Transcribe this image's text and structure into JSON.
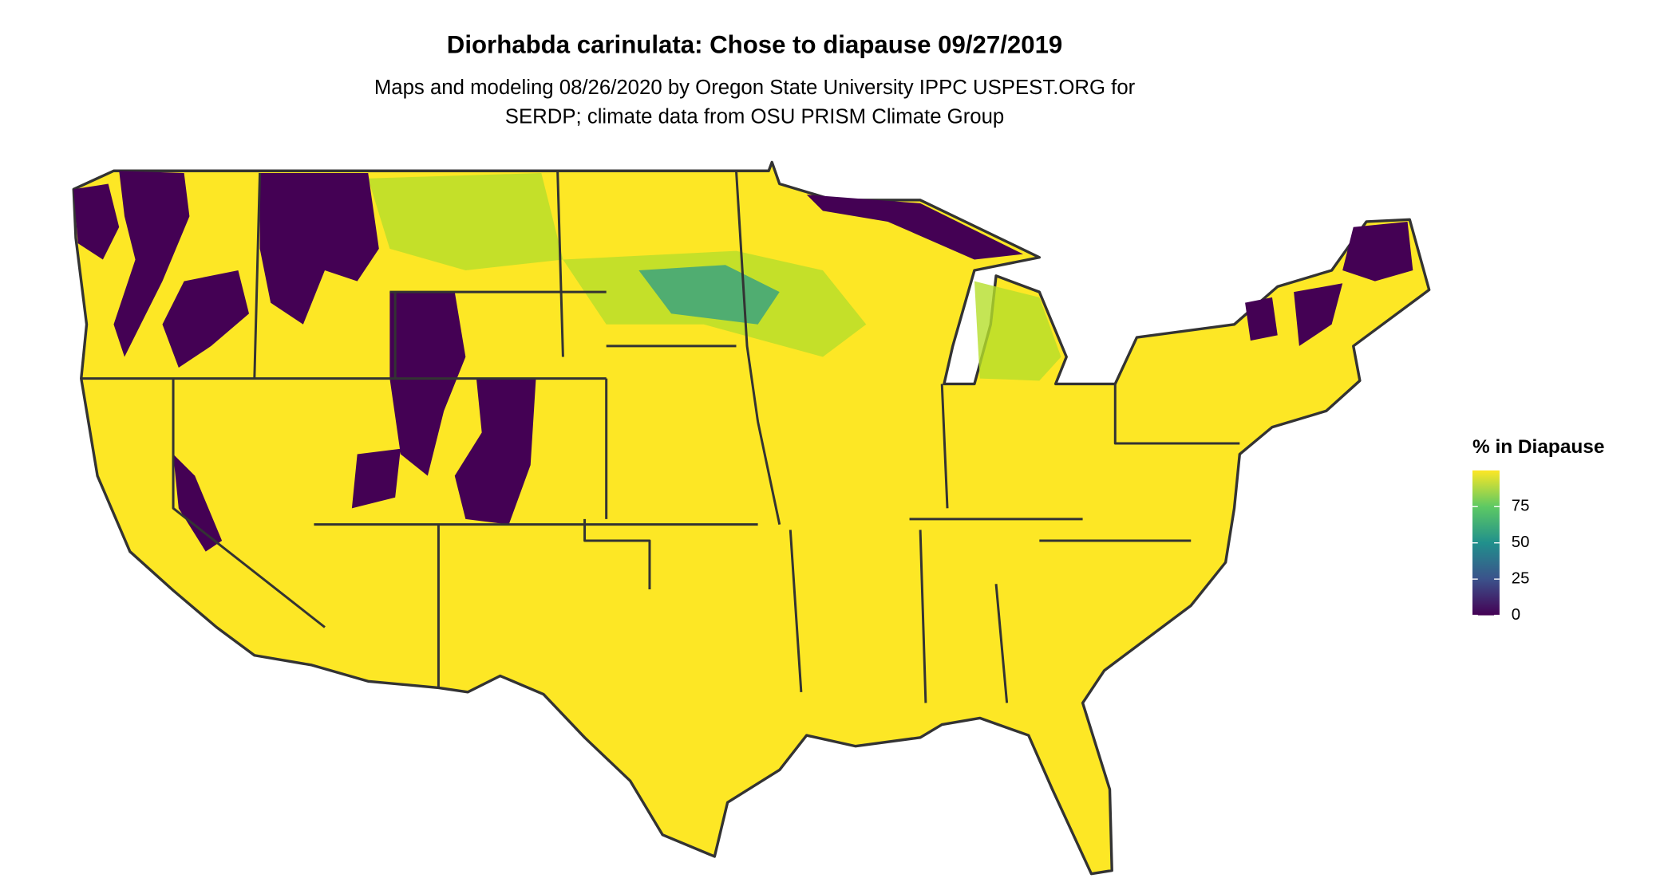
{
  "map": {
    "title": "Diorhabda carinulata: Chose to diapause 09/27/2019",
    "subtitle_lines": [
      "Maps and modeling 08/26/2020 by Oregon State University IPPC USPEST.ORG for",
      "SERDP; climate data from OSU PRISM Climate Group"
    ],
    "legend": {
      "title": "% in Diapause",
      "range": [
        0,
        100
      ],
      "ticks": [
        0,
        25,
        50,
        75
      ],
      "colors": [
        "#440154",
        "#3b528b",
        "#21908c",
        "#5dc963",
        "#fde725"
      ]
    }
  }
}
